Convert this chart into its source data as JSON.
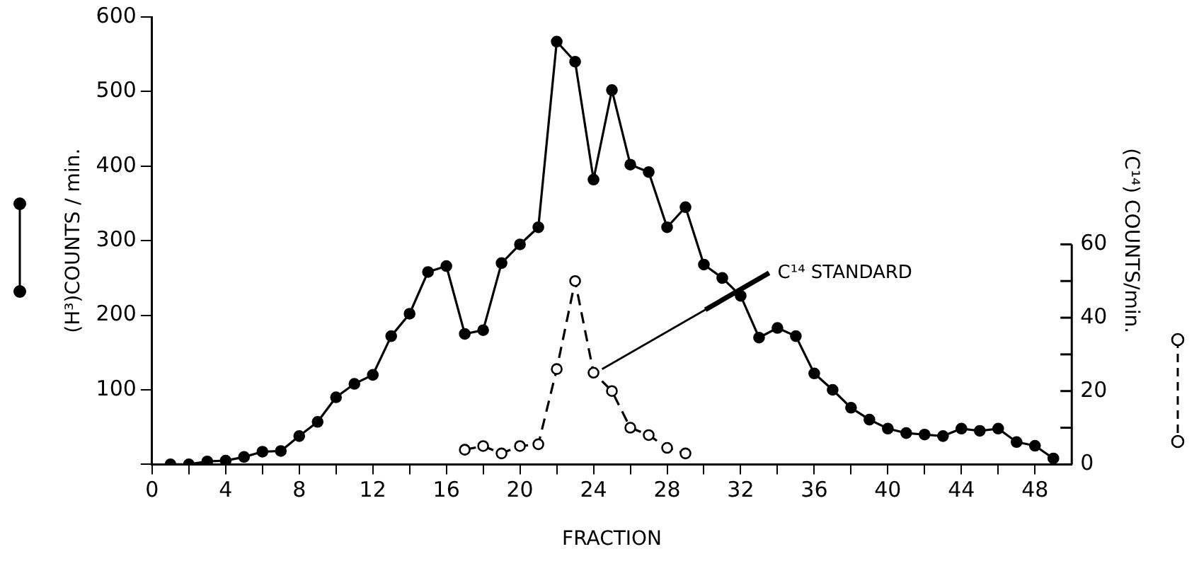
{
  "chart_data": {
    "type": "line",
    "xlabel": "FRACTION",
    "ylabel": "(H³)COUNTS / min.",
    "y2label": "(C¹⁴) COUNTS/min.",
    "series": [
      {
        "color": "#000000",
        "x": [
          1,
          2,
          3,
          4,
          5,
          6,
          7,
          8,
          9,
          10,
          11,
          12,
          13,
          14,
          15,
          16,
          17,
          18,
          19,
          20,
          21,
          22,
          23,
          24,
          25,
          26,
          27,
          28,
          29,
          30,
          31,
          32,
          33,
          34,
          35,
          36,
          37,
          38,
          39,
          40,
          41,
          42,
          43,
          44,
          45,
          46,
          47,
          48,
          49
        ],
        "values": [
          0,
          0,
          4,
          5,
          10,
          17,
          18,
          38,
          57,
          90,
          108,
          120,
          172,
          202,
          258,
          266,
          175,
          180,
          270,
          295,
          318,
          567,
          540,
          382,
          502,
          402,
          392,
          318,
          345,
          268,
          250,
          226,
          170,
          183,
          172,
          122,
          100,
          76,
          60,
          48,
          42,
          40,
          38,
          48,
          45,
          48,
          30,
          25,
          8
        ]
      },
      {
        "color": "#000000",
        "axis": "y2",
        "line_style": "dashed",
        "x": [
          17,
          18,
          19,
          20,
          21,
          22,
          23,
          24,
          25,
          26,
          27,
          28,
          29
        ],
        "values": [
          4,
          5,
          3,
          5,
          5.5,
          26,
          50,
          25,
          20,
          10,
          8,
          4.5,
          3
        ]
      }
    ],
    "annotations": [
      {
        "text": "C¹⁴ STANDARD",
        "x": 24,
        "y": 122
      }
    ],
    "marker": "circle",
    "grid": false,
    "legend": false,
    "xlim": [
      0,
      50
    ],
    "xticks": [
      0,
      {
        "value": 2,
        "label": null
      },
      4,
      {
        "value": 6,
        "label": null
      },
      8,
      {
        "value": 10,
        "label": null
      },
      12,
      {
        "value": 14,
        "label": null
      },
      16,
      {
        "value": 18,
        "label": null
      },
      20,
      {
        "value": 22,
        "label": null
      },
      24,
      {
        "value": 26,
        "label": null
      },
      28,
      {
        "value": 30,
        "label": null
      },
      32,
      {
        "value": 34,
        "label": null
      },
      36,
      {
        "value": 38,
        "label": null
      },
      40,
      {
        "value": 42,
        "label": null
      },
      44,
      {
        "value": 46,
        "label": null
      },
      48
    ],
    "ylim": [
      0,
      600
    ],
    "yticks": [
      {
        "value": 0,
        "label": null
      },
      100,
      200,
      300,
      400,
      500,
      600
    ],
    "y2lim": [
      0,
      122
    ],
    "y2ticks": [
      0,
      {
        "value": 10,
        "label": null
      },
      20,
      {
        "value": 30,
        "label": null
      },
      40,
      {
        "value": 50,
        "label": null
      },
      60
    ]
  }
}
